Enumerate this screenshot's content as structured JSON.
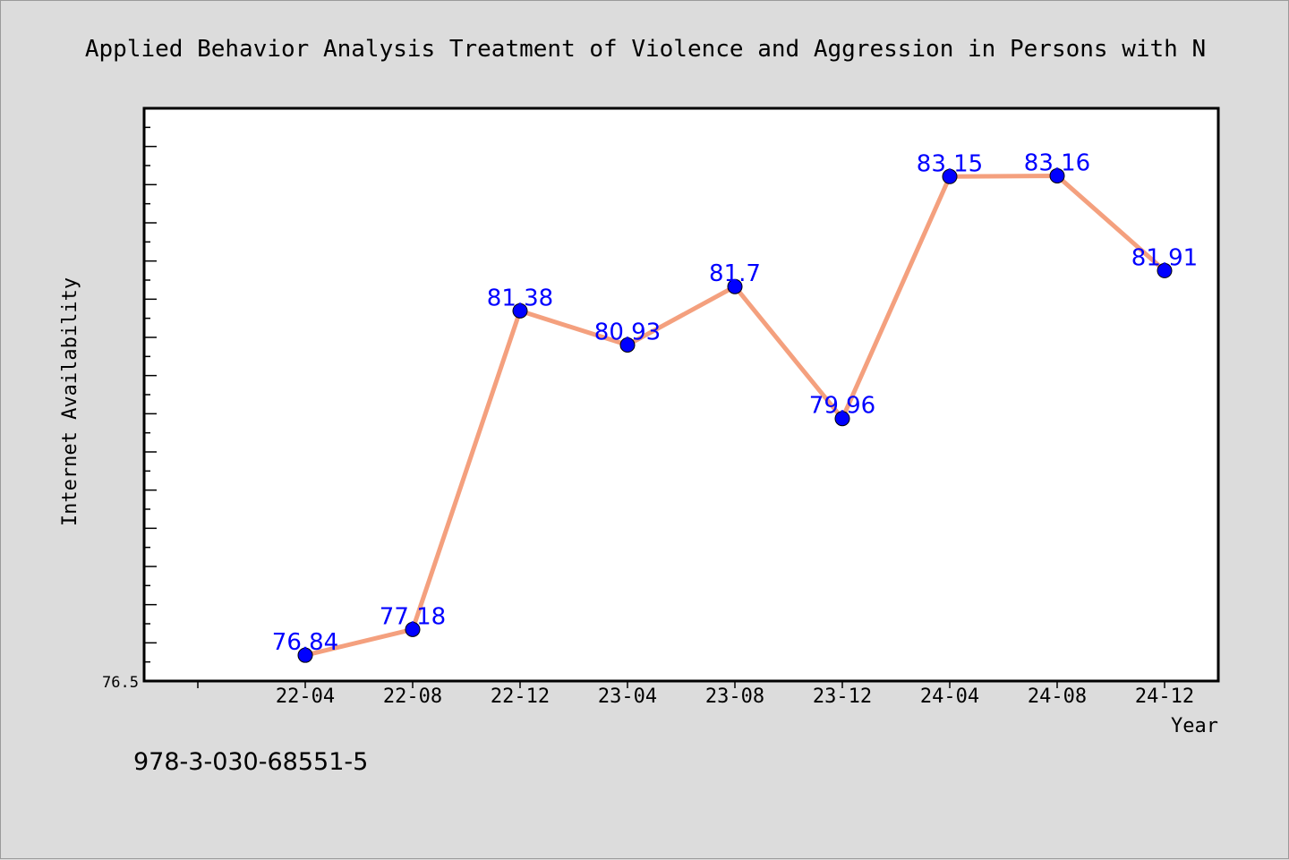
{
  "chart_data": {
    "type": "line",
    "title": "Applied Behavior Analysis Treatment of Violence and Aggression in Persons with N",
    "xlabel": "Year",
    "ylabel": "Internet Availability",
    "categories": [
      "22-04",
      "22-08",
      "22-12",
      "23-04",
      "23-08",
      "23-12",
      "24-04",
      "24-08",
      "24-12"
    ],
    "series": [
      {
        "values": [
          76.84,
          77.18,
          81.38,
          80.93,
          81.7,
          79.96,
          83.15,
          83.16,
          81.91
        ],
        "labels": [
          "76.84",
          "77.18",
          "81.38",
          "80.93",
          "81.7",
          "79.96",
          "83.15",
          "83.16",
          "81.91"
        ]
      }
    ],
    "ylim": [
      76.5,
      84.05
    ],
    "y_tick_label": "76.5",
    "grid": false,
    "colors": {
      "line": "#f4a07e",
      "marker": "#0000ff",
      "label": "#0000ff"
    }
  },
  "footer": {
    "isbn": "978-3-030-68551-5"
  }
}
